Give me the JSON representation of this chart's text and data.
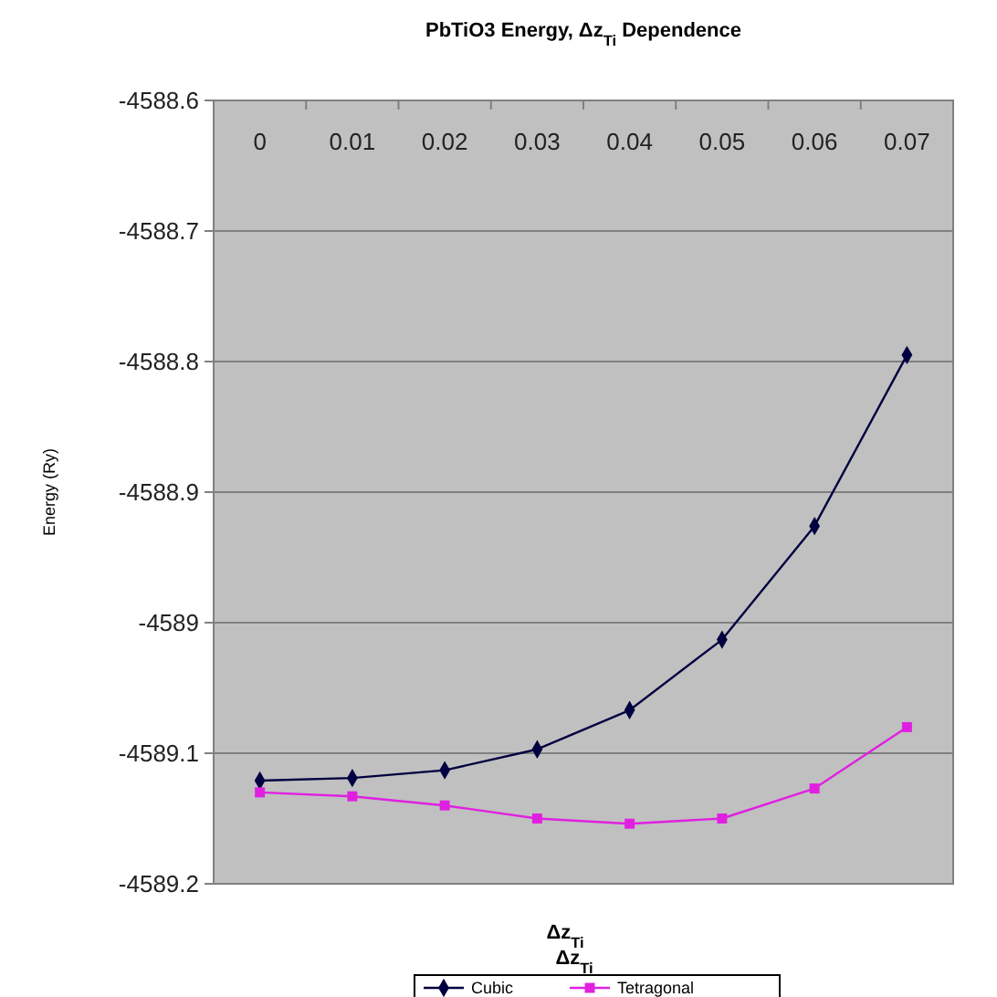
{
  "chart_data": {
    "type": "line",
    "title": "PbTiO3 Energy, Δz$_{Ti}$ Dependence",
    "xlabel": "Δz$_{Ti}$",
    "ylabel": "Energy  (Ry)",
    "annotations": [
      "Δz$_{Ti}$"
    ],
    "categories": [
      "0",
      "0.01",
      "0.02",
      "0.03",
      "0.04",
      "0.05",
      "0.06",
      "0.07"
    ],
    "series": [
      {
        "name": "Cubic",
        "color": "#000040",
        "marker": "diamond",
        "values": [
          -4589.121,
          -4589.119,
          -4589.113,
          -4589.097,
          -4589.067,
          -4589.013,
          -4588.926,
          -4588.795
        ]
      },
      {
        "name": "Tetragonal",
        "color": "#e020e0",
        "marker": "square",
        "values": [
          -4589.13,
          -4589.133,
          -4589.14,
          -4589.15,
          -4589.154,
          -4589.15,
          -4589.127,
          -4589.08
        ]
      }
    ],
    "ylim": [
      -4589.2,
      -4588.6
    ],
    "yticks": [
      -4588.6,
      -4588.7,
      -4588.8,
      -4588.9,
      -4589,
      -4589.1,
      -4589.2
    ],
    "grid": "y",
    "legend": "bottom"
  }
}
